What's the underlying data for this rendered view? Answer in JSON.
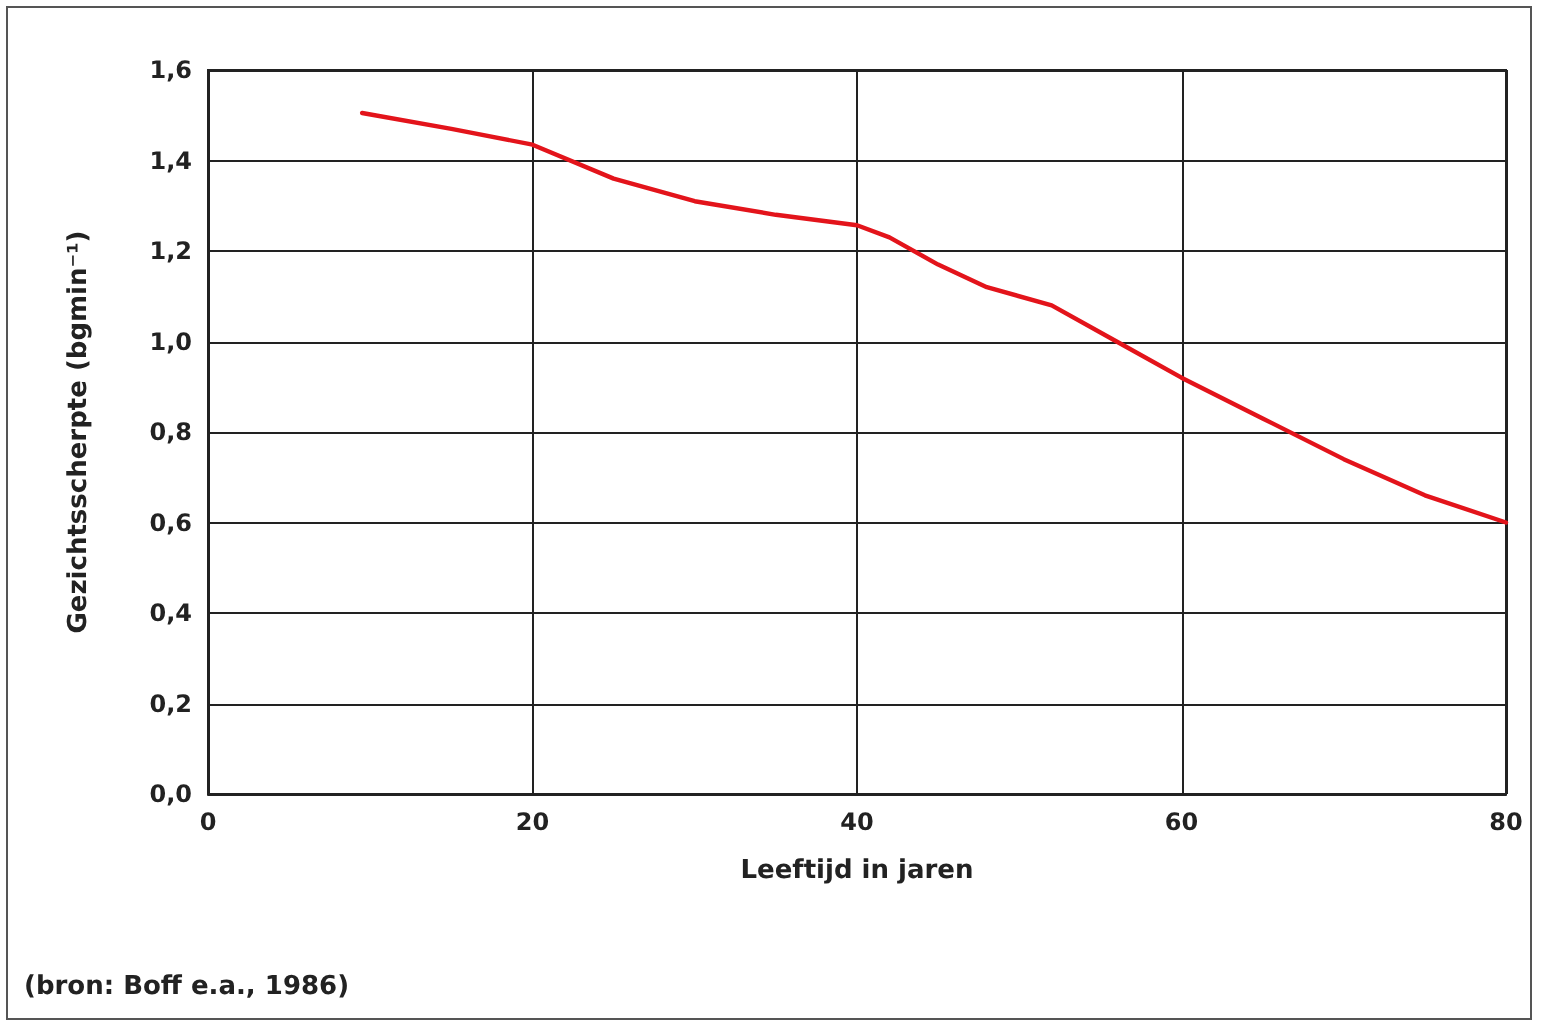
{
  "chart_data": {
    "type": "line",
    "xlabel": "Leeftijd in jaren",
    "ylabel": "Gezichtsscherpte (bgmin⁻¹)",
    "annotations": [
      "(bron: Boff e.a., 1986)"
    ],
    "x": [
      9.5,
      15,
      20,
      25,
      30,
      35,
      40,
      42,
      45,
      48,
      52,
      56,
      60,
      65,
      70,
      75,
      80
    ],
    "series": [
      {
        "color": "#e3141b",
        "values": [
          1.505,
          1.47,
          1.435,
          1.36,
          1.31,
          1.28,
          1.257,
          1.23,
          1.17,
          1.12,
          1.08,
          1.0,
          0.92,
          0.83,
          0.74,
          0.66,
          0.6
        ]
      }
    ],
    "xlim": [
      0,
      80
    ],
    "xticks": [
      0,
      20,
      40,
      60,
      80
    ],
    "ylim": [
      0,
      1.6
    ],
    "yticks": [
      {
        "value": 0,
        "label": "0,0"
      },
      {
        "value": 0.2,
        "label": "0,2"
      },
      {
        "value": 0.4,
        "label": "0,4"
      },
      {
        "value": 0.6,
        "label": "0,6"
      },
      {
        "value": 0.8,
        "label": "0,8"
      },
      {
        "value": 1.0,
        "label": "1,0"
      },
      {
        "value": 1.2,
        "label": "1,2"
      },
      {
        "value": 1.4,
        "label": "1,4"
      },
      {
        "value": 1.6,
        "label": "1,6"
      }
    ],
    "grid": true,
    "marker": "none",
    "line_style": "solid"
  }
}
